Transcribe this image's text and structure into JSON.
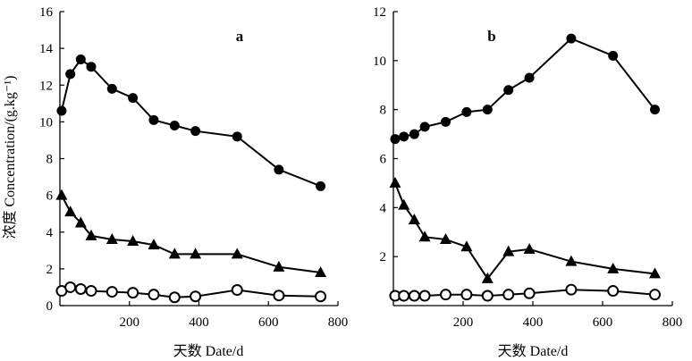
{
  "chart_data": [
    {
      "type": "line",
      "panel_label": "a",
      "xlabel": "天数 Date/d",
      "ylabel": "浓度 Concentration/(g.kg⁻¹)",
      "xlim": [
        0,
        800
      ],
      "ylim": [
        0,
        16
      ],
      "xticks": [
        200,
        400,
        600,
        800
      ],
      "yticks": [
        0,
        2,
        4,
        6,
        8,
        10,
        12,
        14,
        16
      ],
      "grid": false,
      "series": [
        {
          "name": "filled-circle",
          "marker": "circle-filled",
          "x": [
            5,
            30,
            60,
            90,
            150,
            210,
            270,
            330,
            390,
            510,
            630,
            750
          ],
          "y": [
            10.6,
            12.6,
            13.4,
            13.0,
            11.8,
            11.3,
            10.1,
            9.8,
            9.5,
            9.2,
            7.4,
            6.5
          ]
        },
        {
          "name": "filled-triangle",
          "marker": "triangle-filled",
          "x": [
            5,
            30,
            60,
            90,
            150,
            210,
            270,
            330,
            390,
            510,
            630,
            750
          ],
          "y": [
            6.0,
            5.1,
            4.5,
            3.8,
            3.6,
            3.5,
            3.3,
            2.8,
            2.8,
            2.8,
            2.1,
            1.8
          ]
        },
        {
          "name": "open-circle",
          "marker": "circle-open",
          "x": [
            5,
            30,
            60,
            90,
            150,
            210,
            270,
            330,
            390,
            510,
            630,
            750
          ],
          "y": [
            0.8,
            1.0,
            0.9,
            0.8,
            0.75,
            0.7,
            0.6,
            0.45,
            0.5,
            0.85,
            0.55,
            0.5
          ]
        }
      ]
    },
    {
      "type": "line",
      "panel_label": "b",
      "xlabel": "天数 Date/d",
      "ylabel": "",
      "xlim": [
        0,
        800
      ],
      "ylim": [
        0,
        12
      ],
      "xticks": [
        200,
        400,
        600,
        800
      ],
      "yticks": [
        2,
        4,
        6,
        8,
        10,
        12
      ],
      "grid": false,
      "series": [
        {
          "name": "filled-circle",
          "marker": "circle-filled",
          "x": [
            5,
            30,
            60,
            90,
            150,
            210,
            270,
            330,
            390,
            510,
            630,
            750
          ],
          "y": [
            6.8,
            6.9,
            7.0,
            7.3,
            7.5,
            7.9,
            8.0,
            8.8,
            9.3,
            10.9,
            10.2,
            8.0
          ]
        },
        {
          "name": "filled-triangle",
          "marker": "triangle-filled",
          "x": [
            5,
            30,
            60,
            90,
            150,
            210,
            270,
            330,
            390,
            510,
            630,
            750
          ],
          "y": [
            5.0,
            4.1,
            3.5,
            2.8,
            2.7,
            2.4,
            1.1,
            2.2,
            2.3,
            1.8,
            1.5,
            1.3
          ]
        },
        {
          "name": "open-circle",
          "marker": "circle-open",
          "x": [
            5,
            30,
            60,
            90,
            150,
            210,
            270,
            330,
            390,
            510,
            630,
            750
          ],
          "y": [
            0.4,
            0.4,
            0.4,
            0.4,
            0.45,
            0.45,
            0.4,
            0.45,
            0.5,
            0.65,
            0.6,
            0.45
          ]
        }
      ]
    }
  ]
}
